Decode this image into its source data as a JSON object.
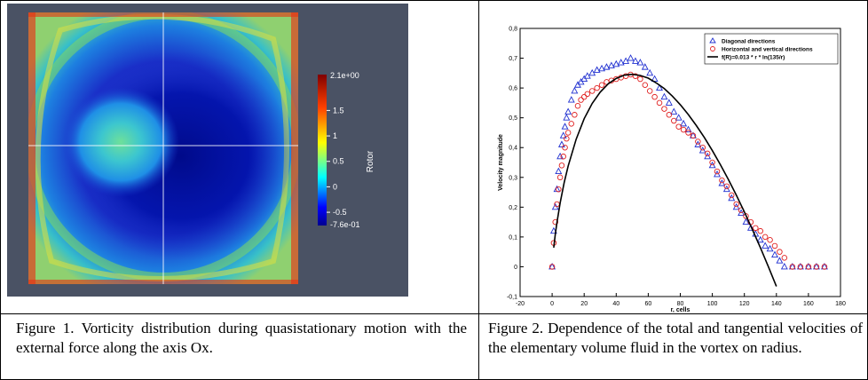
{
  "figure1": {
    "caption": "Figure 1. Vorticity distribution during quasistationary motion with the external force along the axis Ox.",
    "background_color": "#4a5264",
    "colorbar": {
      "title": "Rotor",
      "max_label": "2.1e+00",
      "min_label": "-7.6e-01",
      "tick_labels": [
        "1.5",
        "1",
        "0.5",
        "0",
        "-0.5"
      ],
      "range": [
        -0.76,
        2.1
      ],
      "ticks": [
        1.5,
        1,
        0.5,
        0,
        -0.5
      ],
      "colormap": "jet"
    }
  },
  "figure2": {
    "caption": "Figure 2. Dependence of the total and tangential velocities of the elementary volume fluid in the vortex on radius."
  },
  "chart_data": {
    "type": "scatter",
    "xlabel": "r, cells",
    "ylabel": "Velocity magnitude",
    "xlim": [
      -20,
      180
    ],
    "ylim": [
      -0.1,
      0.8
    ],
    "x_ticks": [
      -20,
      0,
      20,
      40,
      60,
      80,
      100,
      120,
      140,
      160,
      180
    ],
    "y_ticks": [
      -0.1,
      0,
      0.1,
      0.2,
      0.3,
      0.4,
      0.5,
      0.6,
      0.7,
      0.8
    ],
    "x_tick_labels": [
      "-20",
      "0",
      "20",
      "40",
      "60",
      "80",
      "100",
      "120",
      "140",
      "160",
      "180"
    ],
    "y_tick_labels": [
      "-0,1",
      "0",
      "0,1",
      "0,2",
      "0,3",
      "0,4",
      "0,5",
      "0,6",
      "0,7",
      "0,8"
    ],
    "legend_position": "top-right",
    "grid": false,
    "series": [
      {
        "name": "Diagonal directions",
        "marker": "triangle",
        "color": "#1f2fd0",
        "x": [
          0,
          1,
          2,
          3,
          4,
          5,
          6,
          7,
          8,
          9,
          10,
          12,
          14,
          16,
          18,
          20,
          22,
          25,
          28,
          31,
          34,
          37,
          40,
          43,
          46,
          49,
          52,
          55,
          58,
          61,
          64,
          67,
          70,
          73,
          76,
          79,
          82,
          85,
          88,
          91,
          94,
          97,
          100,
          103,
          106,
          109,
          112,
          115,
          118,
          121,
          124,
          127,
          130,
          133,
          136,
          139,
          142,
          145,
          150,
          155,
          160,
          165,
          170
        ],
        "y": [
          0.0,
          0.12,
          0.2,
          0.26,
          0.32,
          0.37,
          0.41,
          0.44,
          0.47,
          0.5,
          0.52,
          0.56,
          0.59,
          0.61,
          0.62,
          0.63,
          0.64,
          0.65,
          0.66,
          0.665,
          0.67,
          0.675,
          0.68,
          0.685,
          0.69,
          0.7,
          0.69,
          0.685,
          0.67,
          0.65,
          0.63,
          0.6,
          0.57,
          0.55,
          0.52,
          0.5,
          0.48,
          0.46,
          0.44,
          0.41,
          0.39,
          0.37,
          0.34,
          0.31,
          0.28,
          0.26,
          0.23,
          0.2,
          0.18,
          0.15,
          0.13,
          0.11,
          0.09,
          0.07,
          0.06,
          0.04,
          0.02,
          0.0,
          0.0,
          0.0,
          0.0,
          0.0,
          0.0
        ]
      },
      {
        "name": "Horizontal and vertical directions",
        "marker": "circle",
        "color": "#e02020",
        "x": [
          0,
          1,
          2,
          3,
          4,
          5,
          6,
          7,
          8,
          9,
          10,
          12,
          14,
          16,
          18,
          20,
          22,
          25,
          28,
          31,
          34,
          37,
          40,
          43,
          46,
          49,
          52,
          55,
          58,
          61,
          64,
          67,
          70,
          73,
          76,
          79,
          82,
          85,
          88,
          91,
          94,
          97,
          100,
          103,
          106,
          109,
          112,
          115,
          118,
          121,
          124,
          127,
          130,
          133,
          136,
          139,
          142,
          145,
          150,
          155,
          160,
          165,
          170
        ],
        "y": [
          0.0,
          0.08,
          0.15,
          0.21,
          0.26,
          0.3,
          0.34,
          0.37,
          0.4,
          0.43,
          0.45,
          0.48,
          0.51,
          0.54,
          0.56,
          0.57,
          0.58,
          0.59,
          0.6,
          0.61,
          0.62,
          0.625,
          0.63,
          0.635,
          0.64,
          0.645,
          0.64,
          0.63,
          0.61,
          0.59,
          0.57,
          0.55,
          0.53,
          0.51,
          0.49,
          0.47,
          0.46,
          0.45,
          0.44,
          0.42,
          0.4,
          0.38,
          0.35,
          0.32,
          0.29,
          0.27,
          0.24,
          0.21,
          0.19,
          0.17,
          0.15,
          0.13,
          0.12,
          0.1,
          0.09,
          0.07,
          0.05,
          0.03,
          0.0,
          0.0,
          0.0,
          0.0,
          0.0
        ]
      },
      {
        "name": "f(R)=0.013 * r * ln(135/r)",
        "marker": "line",
        "color": "#000000",
        "x": [
          1,
          2,
          3,
          5,
          7.5,
          10,
          15,
          20,
          25,
          30,
          35,
          40,
          45,
          50,
          55,
          60,
          65,
          70,
          75,
          80,
          85,
          90,
          95,
          100,
          105,
          110,
          115,
          120,
          125,
          130,
          135,
          140
        ],
        "y": [
          0.064,
          0.11,
          0.148,
          0.214,
          0.282,
          0.338,
          0.428,
          0.497,
          0.548,
          0.586,
          0.614,
          0.632,
          0.643,
          0.646,
          0.642,
          0.633,
          0.617,
          0.598,
          0.573,
          0.544,
          0.511,
          0.474,
          0.434,
          0.39,
          0.343,
          0.293,
          0.24,
          0.184,
          0.125,
          0.064,
          0.0,
          -0.066
        ]
      }
    ]
  }
}
